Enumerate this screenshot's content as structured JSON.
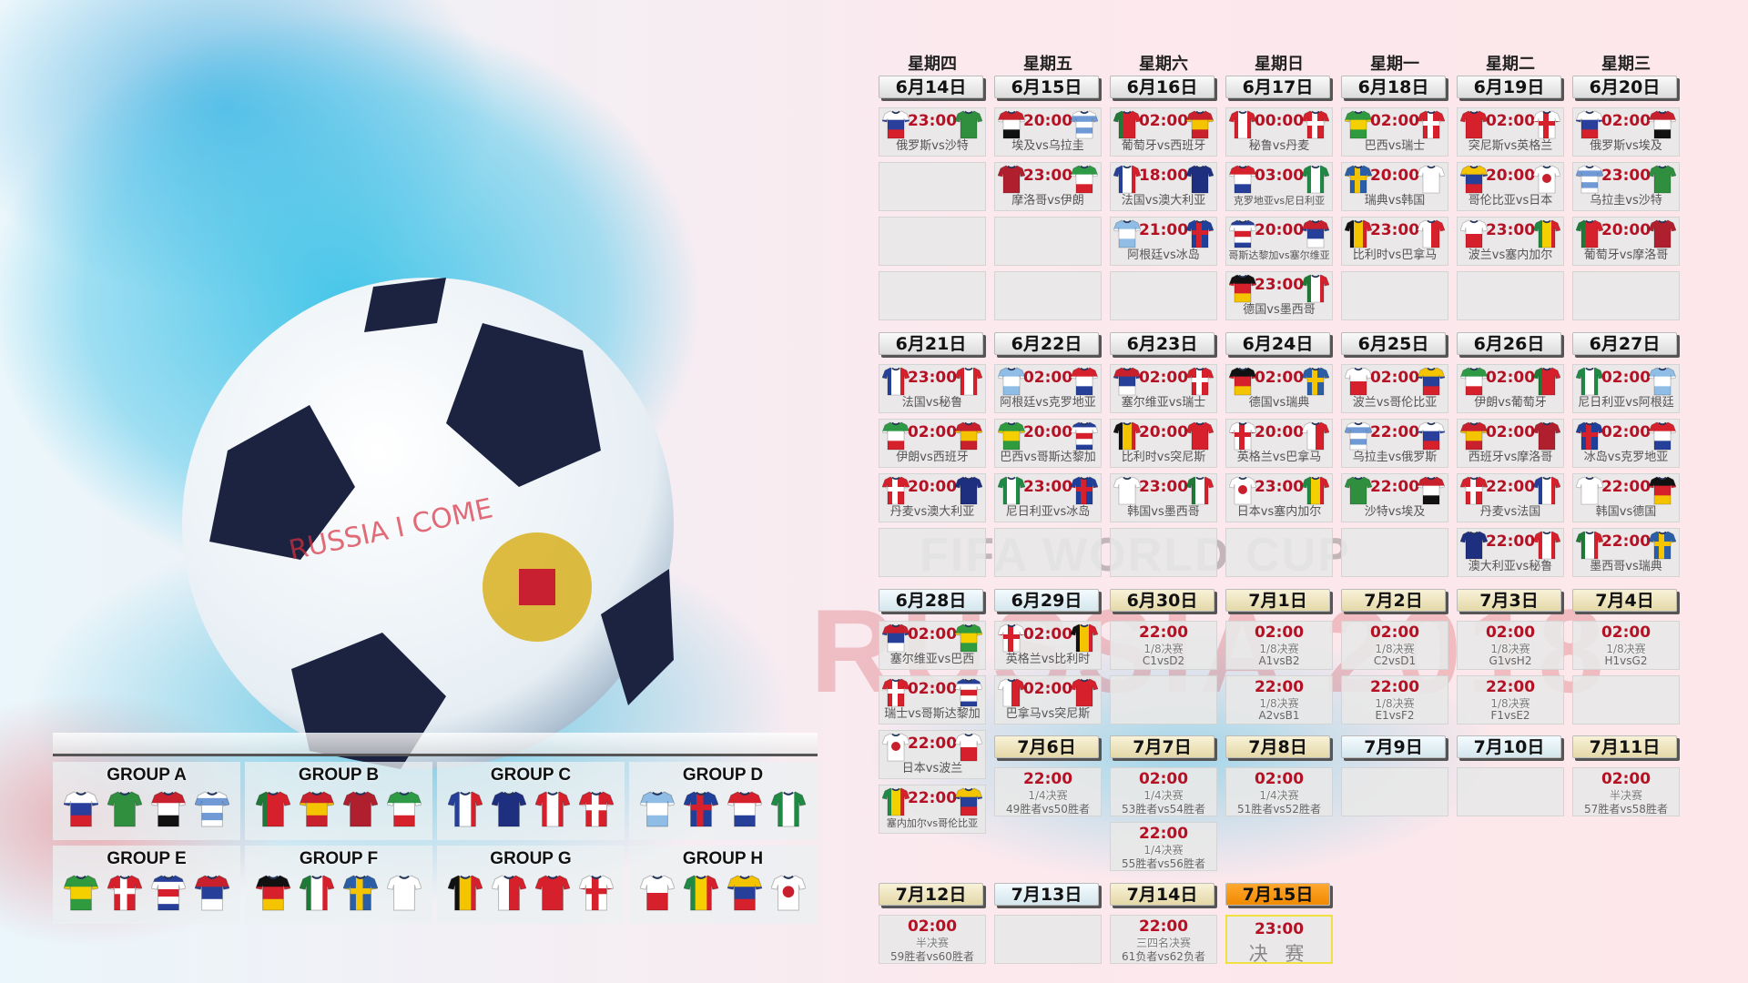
{
  "background": {
    "watermark_title": "FIFA WORLD CUP",
    "watermark_subtitle": "RUSSIA 2018",
    "ball_text": "RUSSIA I COME"
  },
  "weekdays": [
    "星期四",
    "星期五",
    "星期六",
    "星期日",
    "星期一",
    "星期二",
    "星期三"
  ],
  "kits": {
    "俄罗斯": {
      "t": "h",
      "c": [
        "#ffffff",
        "#2a3f9c",
        "#d6202c"
      ]
    },
    "沙特": {
      "t": "h",
      "c": [
        "#2f8f3e"
      ]
    },
    "埃及": {
      "t": "h",
      "c": [
        "#c8202c",
        "#ffffff",
        "#111111"
      ]
    },
    "乌拉圭": {
      "t": "h",
      "c": [
        "#ffffff",
        "#6f9ad6",
        "#ffffff",
        "#6f9ad6",
        "#ffffff"
      ]
    },
    "葡萄牙": {
      "t": "v",
      "c": [
        "#1f7a35",
        "#d6202c",
        "#d6202c"
      ]
    },
    "西班牙": {
      "t": "h",
      "c": [
        "#c8202c",
        "#f5c400",
        "#c8202c"
      ]
    },
    "摩洛哥": {
      "t": "h",
      "c": [
        "#b01f2e"
      ]
    },
    "伊朗": {
      "t": "h",
      "c": [
        "#2f9a46",
        "#ffffff",
        "#d6202c"
      ]
    },
    "法国": {
      "t": "v",
      "c": [
        "#26409a",
        "#ffffff",
        "#d6202c"
      ]
    },
    "澳大利亚": {
      "t": "h",
      "c": [
        "#1f2f80"
      ]
    },
    "秘鲁": {
      "t": "v",
      "c": [
        "#d6202c",
        "#ffffff",
        "#d6202c"
      ]
    },
    "丹麦": {
      "t": "x",
      "c": [
        "#d6202c",
        "#ffffff"
      ]
    },
    "阿根廷": {
      "t": "h",
      "c": [
        "#8fbde6",
        "#ffffff",
        "#8fbde6"
      ]
    },
    "冰岛": {
      "t": "x",
      "c": [
        "#1f3f9a",
        "#d6202c"
      ]
    },
    "克罗地亚": {
      "t": "h",
      "c": [
        "#d6202c",
        "#ffffff",
        "#26409a"
      ]
    },
    "尼日利亚": {
      "t": "v",
      "c": [
        "#1f8a44",
        "#ffffff",
        "#1f8a44"
      ]
    },
    "巴西": {
      "t": "h",
      "c": [
        "#2f9a3e",
        "#f5d000",
        "#2f9a3e"
      ]
    },
    "瑞士": {
      "t": "x",
      "c": [
        "#d6202c",
        "#ffffff"
      ]
    },
    "哥斯达黎加": {
      "t": "h",
      "c": [
        "#26409a",
        "#ffffff",
        "#d6202c",
        "#ffffff",
        "#26409a"
      ]
    },
    "塞尔维亚": {
      "t": "h",
      "c": [
        "#c8202c",
        "#26409a",
        "#ffffff"
      ]
    },
    "德国": {
      "t": "h",
      "c": [
        "#111111",
        "#d6202c",
        "#f5c400"
      ]
    },
    "墨西哥": {
      "t": "v",
      "c": [
        "#1f7a35",
        "#ffffff",
        "#d6202c"
      ]
    },
    "瑞典": {
      "t": "x",
      "c": [
        "#2a5fa8",
        "#f5c400"
      ]
    },
    "韩国": {
      "t": "h",
      "c": [
        "#ffffff"
      ]
    },
    "比利时": {
      "t": "v",
      "c": [
        "#111111",
        "#f5c400",
        "#d6202c"
      ]
    },
    "巴拿马": {
      "t": "v",
      "c": [
        "#ffffff",
        "#d6202c"
      ]
    },
    "突尼斯": {
      "t": "h",
      "c": [
        "#d6202c"
      ]
    },
    "英格兰": {
      "t": "x",
      "c": [
        "#ffffff",
        "#d6202c"
      ]
    },
    "波兰": {
      "t": "h",
      "c": [
        "#ffffff",
        "#d6202c"
      ]
    },
    "塞内加尔": {
      "t": "v",
      "c": [
        "#1f8a44",
        "#f5d000",
        "#d6202c"
      ]
    },
    "哥伦比亚": {
      "t": "h",
      "c": [
        "#f5c400",
        "#26409a",
        "#d6202c"
      ]
    },
    "日本": {
      "t": "d",
      "c": [
        "#ffffff",
        "#c8202c"
      ]
    }
  },
  "weeks": [
    [
      [
        {
          "date": "6月14日",
          "slots": [
            {
              "time": "23:00",
              "home": "俄罗斯",
              "away": "沙特"
            },
            null,
            null,
            null
          ]
        }
      ],
      [
        {
          "date": "6月15日",
          "slots": [
            {
              "time": "20:00",
              "home": "埃及",
              "away": "乌拉圭"
            },
            {
              "time": "23:00",
              "home": "摩洛哥",
              "away": "伊朗"
            },
            null,
            null
          ]
        }
      ],
      [
        {
          "date": "6月16日",
          "slots": [
            {
              "time": "02:00",
              "home": "葡萄牙",
              "away": "西班牙"
            },
            {
              "time": "18:00",
              "home": "法国",
              "away": "澳大利亚"
            },
            {
              "time": "21:00",
              "home": "阿根廷",
              "away": "冰岛"
            },
            null
          ]
        }
      ],
      [
        {
          "date": "6月17日",
          "slots": [
            {
              "time": "00:00",
              "home": "秘鲁",
              "away": "丹麦"
            },
            {
              "time": "03:00",
              "home": "克罗地亚",
              "away": "尼日利亚",
              "small": true
            },
            {
              "time": "20:00",
              "home": "哥斯达黎加",
              "away": "塞尔维亚",
              "small": true
            },
            {
              "time": "23:00",
              "home": "德国",
              "away": "墨西哥"
            }
          ]
        }
      ],
      [
        {
          "date": "6月18日",
          "slots": [
            {
              "time": "02:00",
              "home": "巴西",
              "away": "瑞士"
            },
            {
              "time": "20:00",
              "home": "瑞典",
              "away": "韩国"
            },
            {
              "time": "23:00",
              "home": "比利时",
              "away": "巴拿马"
            },
            null
          ]
        }
      ],
      [
        {
          "date": "6月19日",
          "slots": [
            {
              "time": "02:00",
              "home": "突尼斯",
              "away": "英格兰"
            },
            {
              "time": "20:00",
              "home": "哥伦比亚",
              "away": "日本"
            },
            {
              "time": "23:00",
              "home": "波兰",
              "away": "塞内加尔"
            },
            null
          ]
        }
      ],
      [
        {
          "date": "6月20日",
          "slots": [
            {
              "time": "02:00",
              "home": "俄罗斯",
              "away": "埃及"
            },
            {
              "time": "23:00",
              "home": "乌拉圭",
              "away": "沙特"
            },
            {
              "time": "20:00",
              "home": "葡萄牙",
              "away": "摩洛哥"
            },
            null
          ]
        }
      ]
    ],
    [
      [
        {
          "date": "6月21日",
          "slots": [
            {
              "time": "23:00",
              "home": "法国",
              "away": "秘鲁"
            },
            {
              "time": "02:00",
              "home": "伊朗",
              "away": "西班牙"
            },
            {
              "time": "20:00",
              "home": "丹麦",
              "away": "澳大利亚"
            },
            null
          ]
        }
      ],
      [
        {
          "date": "6月22日",
          "slots": [
            {
              "time": "02:00",
              "home": "阿根廷",
              "away": "克罗地亚"
            },
            {
              "time": "20:00",
              "home": "巴西",
              "away": "哥斯达黎加"
            },
            {
              "time": "23:00",
              "home": "尼日利亚",
              "away": "冰岛"
            },
            null
          ]
        }
      ],
      [
        {
          "date": "6月23日",
          "slots": [
            {
              "time": "02:00",
              "home": "塞尔维亚",
              "away": "瑞士"
            },
            {
              "time": "20:00",
              "home": "比利时",
              "away": "突尼斯"
            },
            {
              "time": "23:00",
              "home": "韩国",
              "away": "墨西哥"
            },
            null
          ]
        }
      ],
      [
        {
          "date": "6月24日",
          "slots": [
            {
              "time": "02:00",
              "home": "德国",
              "away": "瑞典"
            },
            {
              "time": "20:00",
              "home": "英格兰",
              "away": "巴拿马"
            },
            {
              "time": "23:00",
              "home": "日本",
              "away": "塞内加尔"
            },
            null
          ]
        }
      ],
      [
        {
          "date": "6月25日",
          "slots": [
            {
              "time": "02:00",
              "home": "波兰",
              "away": "哥伦比亚"
            },
            {
              "time": "22:00",
              "home": "乌拉圭",
              "away": "俄罗斯"
            },
            {
              "time": "22:00",
              "home": "沙特",
              "away": "埃及"
            },
            null
          ]
        }
      ],
      [
        {
          "date": "6月26日",
          "slots": [
            {
              "time": "02:00",
              "home": "伊朗",
              "away": "葡萄牙"
            },
            {
              "time": "02:00",
              "home": "西班牙",
              "away": "摩洛哥"
            },
            {
              "time": "22:00",
              "home": "丹麦",
              "away": "法国"
            },
            {
              "time": "22:00",
              "home": "澳大利亚",
              "away": "秘鲁"
            }
          ]
        }
      ],
      [
        {
          "date": "6月27日",
          "slots": [
            {
              "time": "02:00",
              "home": "尼日利亚",
              "away": "阿根廷"
            },
            {
              "time": "02:00",
              "home": "冰岛",
              "away": "克罗地亚"
            },
            {
              "time": "22:00",
              "home": "韩国",
              "away": "德国"
            },
            {
              "time": "22:00",
              "home": "墨西哥",
              "away": "瑞典"
            }
          ]
        }
      ]
    ],
    [
      [
        {
          "date": "6月28日",
          "style": "ice",
          "slots": [
            {
              "time": "02:00",
              "home": "塞尔维亚",
              "away": "巴西"
            },
            {
              "time": "02:00",
              "home": "瑞士",
              "away": "哥斯达黎加"
            },
            {
              "time": "22:00",
              "home": "日本",
              "away": "波兰"
            },
            {
              "time": "22:00",
              "home": "塞内加尔",
              "away": "哥伦比亚",
              "small": true
            }
          ]
        }
      ],
      [
        {
          "date": "6月29日",
          "style": "ice",
          "slots": [
            {
              "time": "02:00",
              "home": "英格兰",
              "away": "比利时"
            },
            {
              "time": "02:00",
              "home": "巴拿马",
              "away": "突尼斯"
            }
          ]
        },
        {
          "date": "7月6日",
          "style": "ko",
          "slots": [
            {
              "time": "22:00",
              "stage": "1/4决赛",
              "pair": "49胜者vs50胜者"
            }
          ]
        }
      ],
      [
        {
          "date": "6月30日",
          "style": "ko",
          "slots": [
            {
              "time": "22:00",
              "stage": "1/8决赛",
              "pair": "C1vsD2"
            },
            null
          ]
        },
        {
          "date": "7月7日",
          "style": "ko",
          "slots": [
            {
              "time": "02:00",
              "stage": "1/4决赛",
              "pair": "53胜者vs54胜者"
            },
            {
              "time": "22:00",
              "stage": "1/4决赛",
              "pair": "55胜者vs56胜者"
            }
          ]
        }
      ],
      [
        {
          "date": "7月1日",
          "style": "ko",
          "slots": [
            {
              "time": "02:00",
              "stage": "1/8决赛",
              "pair": "A1vsB2"
            },
            {
              "time": "22:00",
              "stage": "1/8决赛",
              "pair": "A2vsB1"
            }
          ]
        },
        {
          "date": "7月8日",
          "style": "ko",
          "slots": [
            {
              "time": "02:00",
              "stage": "1/4决赛",
              "pair": "51胜者vs52胜者"
            }
          ]
        }
      ],
      [
        {
          "date": "7月2日",
          "style": "ko",
          "slots": [
            {
              "time": "02:00",
              "stage": "1/8决赛",
              "pair": "C2vsD1"
            },
            {
              "time": "22:00",
              "stage": "1/8决赛",
              "pair": "E1vsF2"
            }
          ]
        },
        {
          "date": "7月9日",
          "style": "ice",
          "slots": [
            null
          ]
        }
      ],
      [
        {
          "date": "7月3日",
          "style": "ko",
          "slots": [
            {
              "time": "02:00",
              "stage": "1/8决赛",
              "pair": "G1vsH2"
            },
            {
              "time": "22:00",
              "stage": "1/8决赛",
              "pair": "F1vsE2"
            }
          ]
        },
        {
          "date": "7月10日",
          "style": "ice",
          "slots": [
            null
          ]
        }
      ],
      [
        {
          "date": "7月4日",
          "style": "ko",
          "slots": [
            {
              "time": "02:00",
              "stage": "1/8决赛",
              "pair": "H1vsG2"
            },
            null
          ]
        },
        {
          "date": "7月11日",
          "style": "ko",
          "slots": [
            {
              "time": "02:00",
              "stage": "半决赛",
              "pair": "57胜者vs58胜者"
            }
          ]
        }
      ]
    ],
    [
      [
        {
          "date": "7月12日",
          "style": "ko",
          "slots": [
            {
              "time": "02:00",
              "stage": "半决赛",
              "pair": "59胜者vs60胜者"
            }
          ]
        }
      ],
      [
        {
          "date": "7月13日",
          "style": "ice",
          "slots": [
            null
          ]
        }
      ],
      [
        {
          "date": "7月14日",
          "style": "ko",
          "slots": [
            {
              "time": "22:00",
              "stage": "三四名决赛",
              "pair": "61负者vs62负者"
            }
          ]
        }
      ],
      [
        {
          "date": "7月15日",
          "style": "final",
          "slots": [
            {
              "time": "23:00",
              "final": "决 赛"
            }
          ]
        }
      ]
    ]
  ],
  "groups": [
    {
      "name": "GROUP A",
      "teams": [
        "俄罗斯",
        "沙特",
        "埃及",
        "乌拉圭"
      ]
    },
    {
      "name": "GROUP B",
      "teams": [
        "葡萄牙",
        "西班牙",
        "摩洛哥",
        "伊朗"
      ]
    },
    {
      "name": "GROUP C",
      "teams": [
        "法国",
        "澳大利亚",
        "秘鲁",
        "丹麦"
      ]
    },
    {
      "name": "GROUP D",
      "teams": [
        "阿根廷",
        "冰岛",
        "克罗地亚",
        "尼日利亚"
      ]
    },
    {
      "name": "GROUP E",
      "teams": [
        "巴西",
        "瑞士",
        "哥斯达黎加",
        "塞尔维亚"
      ]
    },
    {
      "name": "GROUP F",
      "teams": [
        "德国",
        "墨西哥",
        "瑞典",
        "韩国"
      ]
    },
    {
      "name": "GROUP G",
      "teams": [
        "比利时",
        "巴拿马",
        "突尼斯",
        "英格兰"
      ]
    },
    {
      "name": "GROUP H",
      "teams": [
        "波兰",
        "塞内加尔",
        "哥伦比亚",
        "日本"
      ]
    }
  ]
}
